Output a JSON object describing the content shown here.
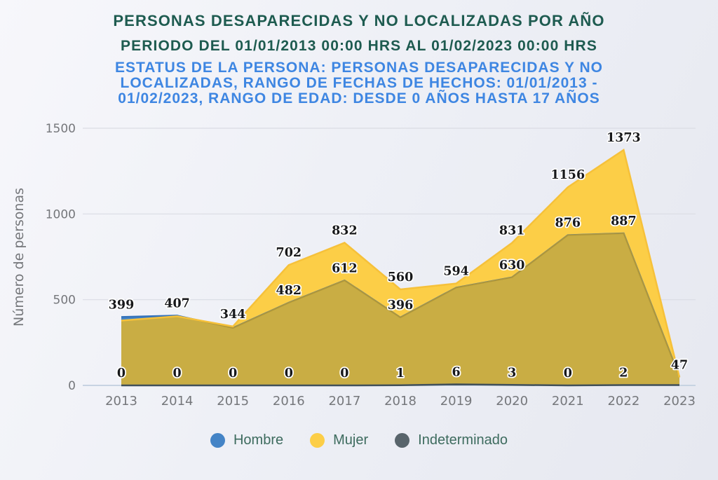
{
  "header": {
    "title": "PERSONAS DESAPARECIDAS Y NO LOCALIZADAS POR AÑO",
    "period": "PERIODO DEL 01/01/2013 00:00 HRS AL 01/02/2023 00:00 HRS",
    "status_lines": [
      "ESTATUS DE LA PERSONA: PERSONAS DESAPARECIDAS Y NO",
      "LOCALIZADAS, RANGO DE FECHAS DE HECHOS: 01/01/2013 -",
      "01/02/2023, RANGO DE EDAD: DESDE 0 AÑOS HASTA 17 AÑOS"
    ]
  },
  "colors": {
    "title": "#1e5b50",
    "subtitle": "#3e86e2",
    "axis_text": "#75777b",
    "grid": "#dadce4",
    "baseline": "#c7d3e2",
    "label_text": "#17181a",
    "legend_text": "#3d6b5e",
    "background_start": "#f7f7fb",
    "background_end": "#e6e8f0"
  },
  "chart_data": {
    "type": "area",
    "title": "PERSONAS DESAPARECIDAS Y NO LOCALIZADAS POR AÑO",
    "x_categories": [
      "2013",
      "2014",
      "2015",
      "2016",
      "2017",
      "2018",
      "2019",
      "2020",
      "2021",
      "2022",
      "2023"
    ],
    "ylabel": "Número de personas",
    "xlabel": "",
    "yticks": [
      0,
      500,
      1000,
      1500
    ],
    "ylim": [
      0,
      1500
    ],
    "grid": true,
    "legend_position": "bottom",
    "series": [
      {
        "name": "Hombre",
        "color": "#4484c6",
        "line_color": "#3573bb",
        "values": [
          399,
          407,
          335,
          482,
          612,
          396,
          570,
          630,
          876,
          887,
          50
        ],
        "labels": [
          "399",
          "407",
          null,
          "482",
          "612",
          "396",
          null,
          "630",
          "876",
          "887",
          null
        ]
      },
      {
        "name": "Mujer",
        "color": "#fcce47",
        "line_color": "#f6c13a",
        "values": [
          378,
          403,
          344,
          702,
          832,
          560,
          594,
          831,
          1156,
          1373,
          47
        ],
        "labels": [
          null,
          null,
          "344",
          "702",
          "832",
          "560",
          "594",
          "831",
          "1156",
          "1373",
          "47"
        ]
      },
      {
        "name": "Indeterminado",
        "color": "#58646b",
        "line_color": "#41505a",
        "values": [
          0,
          0,
          0,
          0,
          0,
          1,
          6,
          3,
          0,
          2,
          2
        ],
        "labels": [
          "0",
          "0",
          "0",
          "0",
          "0",
          "1",
          "6",
          "3",
          "0",
          "2",
          null
        ]
      }
    ],
    "overlap_color": "#c9ad44",
    "overlap_line_color": "#b09739"
  }
}
